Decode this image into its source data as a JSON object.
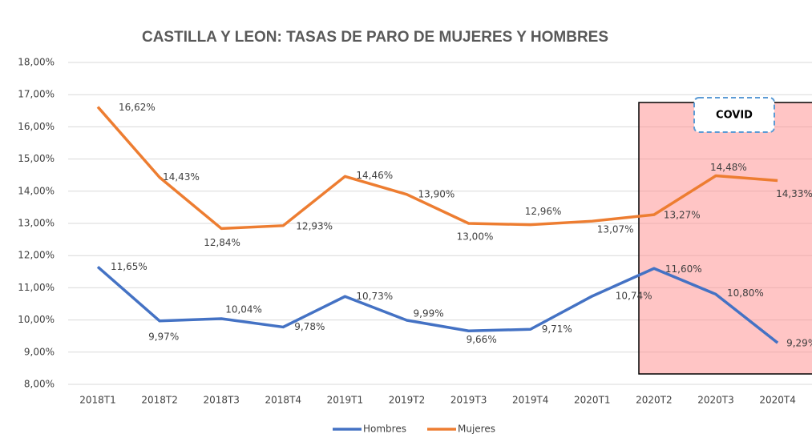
{
  "chart_data": {
    "type": "line",
    "title": "CASTILLA Y LEON: TASAS DE PARO DE MUJERES Y HOMBRES",
    "categories": [
      "2018T1",
      "2018T2",
      "2018T3",
      "2018T4",
      "2019T1",
      "2019T2",
      "2019T3",
      "2019T4",
      "2020T1",
      "2020T2",
      "2020T3",
      "2020T4"
    ],
    "series": [
      {
        "name": "Hombres",
        "color": "#4472c4",
        "values": [
          11.65,
          9.97,
          10.04,
          9.78,
          10.73,
          9.99,
          9.66,
          9.71,
          10.74,
          11.6,
          10.8,
          9.29
        ],
        "value_labels": [
          "11,65%",
          "9,97%",
          "10,04%",
          "9,78%",
          "10,73%",
          "9,99%",
          "9,66%",
          "9,71%",
          "10,74%",
          "11,60%",
          "10,80%",
          "9,29%"
        ]
      },
      {
        "name": "Mujeres",
        "color": "#ed7d31",
        "values": [
          16.62,
          14.43,
          12.84,
          12.93,
          14.46,
          13.9,
          13.0,
          12.96,
          13.07,
          13.27,
          14.48,
          14.33
        ],
        "value_labels": [
          "16,62%",
          "14,43%",
          "12,84%",
          "12,93%",
          "14,46%",
          "13,90%",
          "13,00%",
          "12,96%",
          "13,07%",
          "13,27%",
          "14,48%",
          "14,33%"
        ]
      }
    ],
    "ylim": [
      8,
      18
    ],
    "yticks": [
      {
        "value": 8,
        "label": "8,00%"
      },
      {
        "value": 9,
        "label": "9,00%"
      },
      {
        "value": 10,
        "label": "10,00%"
      },
      {
        "value": 11,
        "label": "11,00%"
      },
      {
        "value": 12,
        "label": "12,00%"
      },
      {
        "value": 13,
        "label": "13,00%"
      },
      {
        "value": 14,
        "label": "14,00%"
      },
      {
        "value": 15,
        "label": "15,00%"
      },
      {
        "value": 16,
        "label": "16,00%"
      },
      {
        "value": 17,
        "label": "17,00%"
      },
      {
        "value": 18,
        "label": "18,00%"
      }
    ],
    "grid": true,
    "legend": "bottom",
    "annotations": [
      "COVID"
    ]
  }
}
